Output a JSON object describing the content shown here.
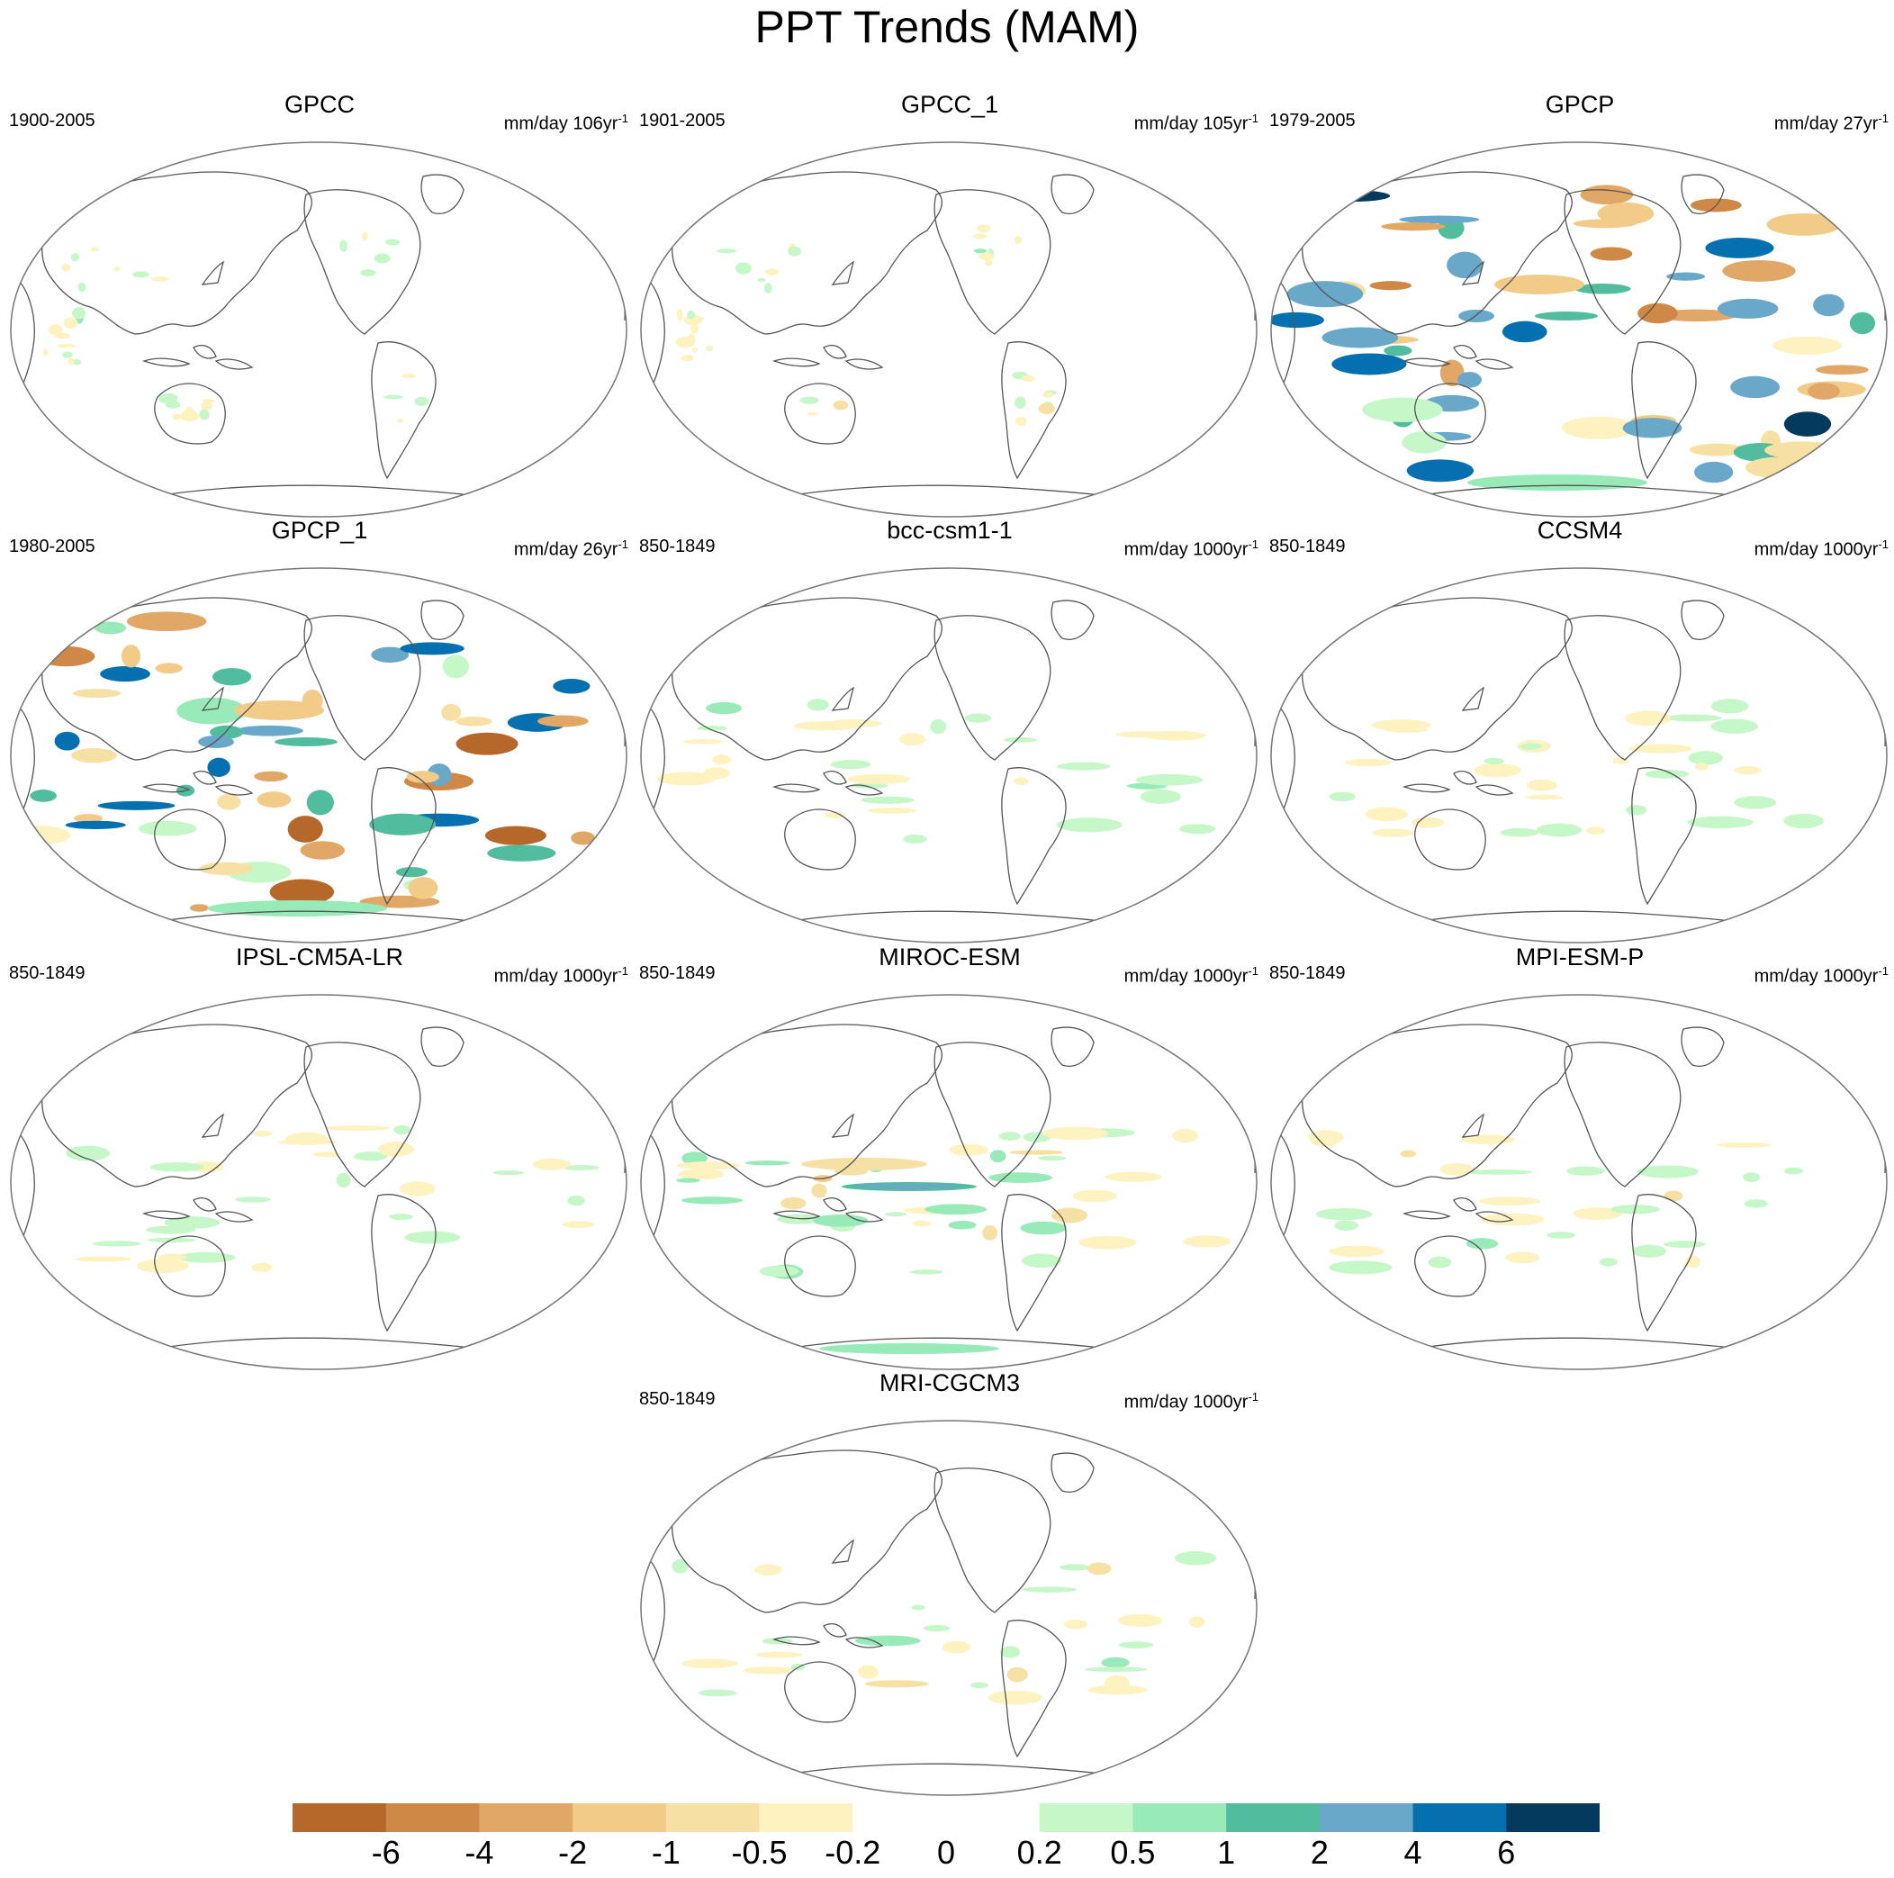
{
  "title": "PPT Trends (MAM)",
  "panels": [
    {
      "title": "GPCC",
      "period": "1900-2005",
      "units": "mm/day 106yr",
      "sup": "-1",
      "intensity": 0.35,
      "pattern": "land"
    },
    {
      "title": "GPCC_1",
      "period": "1901-2005",
      "units": "mm/day 105yr",
      "sup": "-1",
      "intensity": 0.35,
      "pattern": "land"
    },
    {
      "title": "GPCP",
      "period": "1979-2005",
      "units": "mm/day 27yr",
      "sup": "-1",
      "intensity": 1.0,
      "pattern": "obs"
    },
    {
      "title": "GPCP_1",
      "period": "1980-2005",
      "units": "mm/day 26yr",
      "sup": "-1",
      "intensity": 1.0,
      "pattern": "obs"
    },
    {
      "title": "bcc-csm1-1",
      "period": "850-1849",
      "units": "mm/day 1000yr",
      "sup": "-1",
      "intensity": 0.4,
      "pattern": "model"
    },
    {
      "title": "CCSM4",
      "period": "850-1849",
      "units": "mm/day 1000yr",
      "sup": "-1",
      "intensity": 0.3,
      "pattern": "model"
    },
    {
      "title": "IPSL-CM5A-LR",
      "period": "850-1849",
      "units": "mm/day 1000yr",
      "sup": "-1",
      "intensity": 0.3,
      "pattern": "model"
    },
    {
      "title": "MIROC-ESM",
      "period": "850-1849",
      "units": "mm/day 1000yr",
      "sup": "-1",
      "intensity": 0.7,
      "pattern": "miroc"
    },
    {
      "title": "MPI-ESM-P",
      "period": "850-1849",
      "units": "mm/day 1000yr",
      "sup": "-1",
      "intensity": 0.35,
      "pattern": "model"
    },
    {
      "title": "MRI-CGCM3",
      "period": "850-1849",
      "units": "mm/day 1000yr",
      "sup": "-1",
      "intensity": 0.45,
      "pattern": "model"
    }
  ],
  "colorbar": {
    "colors": [
      "#b5682a",
      "#cf8845",
      "#e0a766",
      "#f3cb88",
      "#f7e0a4",
      "#fdf2c0",
      "#ffffff",
      "#ffffff",
      "#c5f7c9",
      "#99eab9",
      "#52bd9e",
      "#6aa8c9",
      "#0470b0",
      "#033a5e"
    ],
    "labels": [
      "-6",
      "-4",
      "-2",
      "-1",
      "-0.5",
      "-0.2",
      "0",
      "0.2",
      "0.5",
      "1",
      "2",
      "4",
      "6"
    ]
  }
}
